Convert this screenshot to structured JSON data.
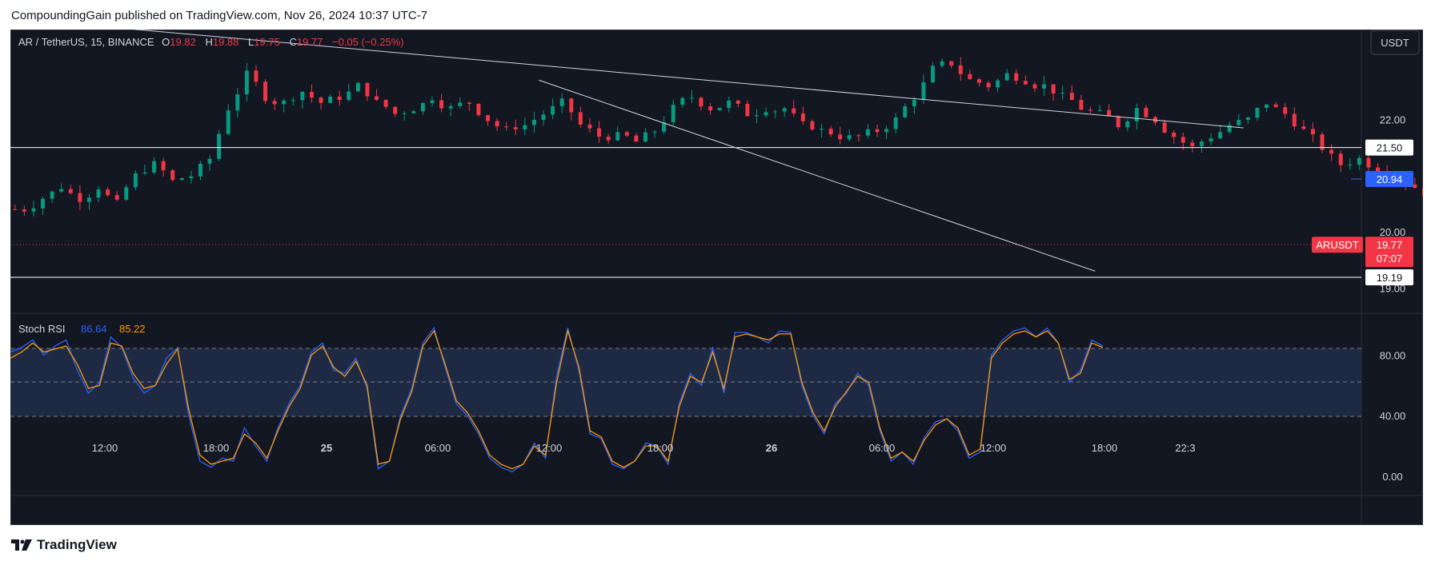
{
  "header": {
    "text": "CompoundingGain published on TradingView.com, Nov 26, 2024 10:37 UTC-7"
  },
  "footer": {
    "brand": "TradingView"
  },
  "symbol": {
    "name": "AR / TetherUS, 15, BINANCE",
    "o_label": "O",
    "o": "19.82",
    "h_label": "H",
    "h": "19.88",
    "l_label": "L",
    "l": "19.75",
    "c_label": "C",
    "c": "19.77",
    "change": "−0.05 (−0.25%)"
  },
  "currency_button": "USDT",
  "price_scale": {
    "ticks": [
      "22.00",
      "20.00",
      "19.00"
    ],
    "line_labels": [
      "21.50",
      "19.19"
    ],
    "alert_label": "20.94",
    "symbol_tag": "ARUSDT",
    "last_price": "19.77",
    "countdown": "07:07"
  },
  "time_axis": {
    "labels": [
      "12:00",
      "18:00",
      "25",
      "06:00",
      "12:00",
      "18:00",
      "26",
      "06:00",
      "12:00",
      "18:00",
      "22:3"
    ]
  },
  "rsi": {
    "title": "Stoch RSI",
    "k": "86.64",
    "d": "85.22",
    "ticks": [
      "80.00",
      "40.00",
      "0.00"
    ]
  },
  "colors": {
    "background": "#131722",
    "up": "#089981",
    "down": "#f23645",
    "k_line": "#2962ff",
    "d_line": "#ff9800",
    "alert": "#2962ff"
  },
  "chart_data": [
    {
      "type": "candlestick",
      "title": "AR / TetherUS, 15, BINANCE",
      "ylim": [
        18.55,
        23.6
      ],
      "close_path": [
        20.4,
        20.6,
        20.8,
        20.6,
        20.8,
        20.5,
        21.0,
        21.2,
        20.9,
        21.0,
        21.3,
        22.2,
        22.8,
        22.4,
        22.3,
        22.5,
        22.3,
        22.4,
        22.6,
        22.3,
        22.1,
        22.2,
        22.4,
        22.2,
        22.3,
        22.0,
        21.8,
        21.9,
        22.1,
        22.3,
        21.9,
        21.7,
        21.7,
        21.6,
        21.8,
        22.2,
        22.4,
        22.2,
        22.3,
        22.1,
        22.2,
        22.2,
        21.9,
        21.8,
        21.7,
        21.7,
        21.8,
        22.0,
        22.4,
        22.9,
        23.0,
        22.7,
        22.6,
        22.8,
        22.7,
        22.6,
        22.4,
        22.2,
        22.1,
        21.9,
        22.2,
        22.0,
        21.7,
        21.5,
        21.7,
        21.9,
        22.0,
        22.3,
        22.1,
        21.8,
        21.5,
        21.2,
        21.3,
        21.1,
        21.0,
        20.8,
        20.6,
        20.4,
        20.2,
        20.5,
        20.3,
        20.2,
        20.4,
        20.6,
        20.7,
        20.6,
        20.5,
        20.6,
        20.8,
        20.9,
        20.8,
        20.9,
        20.6,
        20.7,
        20.8,
        20.6,
        20.7,
        20.8,
        20.5,
        20.2,
        20.0,
        19.8,
        19.6,
        19.7,
        19.8,
        19.7,
        19.5,
        19.2,
        19.0,
        18.8,
        19.1,
        19.2,
        19.3,
        19.3,
        19.2,
        19.4,
        19.4,
        19.3,
        19.5,
        19.6,
        19.7,
        19.6,
        19.7,
        19.8
      ],
      "price_lines": [
        21.5,
        19.19
      ],
      "alert_price": 20.94,
      "last_price": 19.77,
      "trendlines": [
        {
          "from": [
            "2024-11-24 04:00",
            23.8
          ],
          "to": [
            "2024-11-26 22:30",
            21.85
          ]
        },
        {
          "from": [
            "2024-11-25 08:30",
            22.7
          ],
          "to": [
            "2024-11-26 14:30",
            19.3
          ]
        }
      ]
    },
    {
      "type": "line",
      "title": "Stoch RSI",
      "ylim": [
        -10,
        105
      ],
      "bands": [
        20,
        50,
        80
      ],
      "series": [
        {
          "name": "86.64",
          "values": [
            82,
            85,
            90,
            80,
            86,
            90,
            70,
            55,
            62,
            92,
            85,
            65,
            55,
            60,
            78,
            85,
            40,
            10,
            6,
            12,
            10,
            32,
            20,
            10,
            32,
            48,
            60,
            82,
            88,
            70,
            68,
            78,
            58,
            5,
            10,
            40,
            58,
            88,
            98,
            72,
            48,
            40,
            28,
            12,
            6,
            3,
            8,
            22,
            12,
            66,
            98,
            70,
            28,
            25,
            8,
            5,
            10,
            22,
            20,
            8,
            48,
            68,
            60,
            85,
            55,
            95,
            95,
            92,
            88,
            96,
            95,
            60,
            40,
            28,
            48,
            55,
            68,
            60,
            30,
            10,
            16,
            8,
            26,
            36,
            38,
            30,
            12,
            16,
            80,
            90,
            96,
            98,
            92,
            98,
            88,
            62,
            70,
            90,
            86
          ]
        },
        {
          "name": "85.22",
          "values": [
            78,
            82,
            88,
            82,
            84,
            86,
            74,
            58,
            60,
            88,
            86,
            68,
            58,
            60,
            74,
            84,
            44,
            14,
            8,
            10,
            12,
            28,
            22,
            12,
            30,
            46,
            58,
            80,
            86,
            72,
            66,
            76,
            60,
            8,
            10,
            38,
            56,
            86,
            96,
            74,
            50,
            42,
            30,
            14,
            8,
            5,
            8,
            20,
            14,
            62,
            96,
            72,
            30,
            26,
            10,
            6,
            10,
            20,
            20,
            10,
            46,
            66,
            62,
            82,
            58,
            92,
            94,
            92,
            90,
            94,
            94,
            62,
            42,
            30,
            46,
            56,
            66,
            62,
            32,
            12,
            16,
            10,
            24,
            34,
            38,
            32,
            14,
            18,
            78,
            88,
            94,
            96,
            92,
            96,
            88,
            64,
            68,
            88,
            85
          ]
        }
      ]
    }
  ]
}
